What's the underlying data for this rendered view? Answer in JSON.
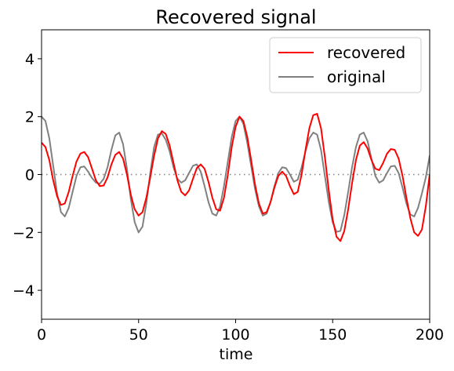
{
  "chart_data": {
    "type": "line",
    "title": "Recovered signal",
    "xlabel": "time",
    "ylabel": "",
    "xlim": [
      0,
      200
    ],
    "ylim": [
      -5,
      5
    ],
    "xticks": [
      0,
      50,
      100,
      150,
      200
    ],
    "yticks": [
      -4,
      -2,
      0,
      2,
      4
    ],
    "xtick_labels": [
      "0",
      "50",
      "100",
      "150",
      "200"
    ],
    "ytick_labels": [
      "−4",
      "−2",
      "0",
      "2",
      "4"
    ],
    "grid": false,
    "legend": "top-right",
    "reference_line": {
      "y": 0,
      "style": "dotted",
      "color": "#808080"
    },
    "series": [
      {
        "name": "recovered",
        "color": "#ff0000",
        "points": [
          [
            0,
            1.1
          ],
          [
            2,
            0.95
          ],
          [
            4,
            0.5
          ],
          [
            6,
            -0.2
          ],
          [
            8,
            -0.75
          ],
          [
            10,
            -1.05
          ],
          [
            12,
            -1.0
          ],
          [
            14,
            -0.6
          ],
          [
            16,
            -0.05
          ],
          [
            18,
            0.45
          ],
          [
            20,
            0.72
          ],
          [
            22,
            0.78
          ],
          [
            24,
            0.6
          ],
          [
            26,
            0.2
          ],
          [
            28,
            -0.2
          ],
          [
            30,
            -0.4
          ],
          [
            32,
            -0.38
          ],
          [
            34,
            -0.1
          ],
          [
            36,
            0.35
          ],
          [
            38,
            0.68
          ],
          [
            40,
            0.78
          ],
          [
            42,
            0.55
          ],
          [
            44,
            0.0
          ],
          [
            46,
            -0.7
          ],
          [
            48,
            -1.2
          ],
          [
            50,
            -1.42
          ],
          [
            52,
            -1.3
          ],
          [
            54,
            -0.8
          ],
          [
            56,
            -0.1
          ],
          [
            58,
            0.65
          ],
          [
            60,
            1.25
          ],
          [
            62,
            1.5
          ],
          [
            64,
            1.4
          ],
          [
            66,
            1.0
          ],
          [
            68,
            0.4
          ],
          [
            70,
            -0.2
          ],
          [
            72,
            -0.6
          ],
          [
            74,
            -0.72
          ],
          [
            76,
            -0.55
          ],
          [
            78,
            -0.15
          ],
          [
            80,
            0.22
          ],
          [
            82,
            0.35
          ],
          [
            84,
            0.2
          ],
          [
            86,
            -0.25
          ],
          [
            88,
            -0.8
          ],
          [
            90,
            -1.2
          ],
          [
            92,
            -1.25
          ],
          [
            94,
            -0.8
          ],
          [
            96,
            0.0
          ],
          [
            98,
            0.95
          ],
          [
            100,
            1.65
          ],
          [
            102,
            2.0
          ],
          [
            104,
            1.85
          ],
          [
            106,
            1.3
          ],
          [
            108,
            0.5
          ],
          [
            110,
            -0.35
          ],
          [
            112,
            -1.0
          ],
          [
            114,
            -1.35
          ],
          [
            116,
            -1.3
          ],
          [
            118,
            -0.95
          ],
          [
            120,
            -0.45
          ],
          [
            122,
            -0.05
          ],
          [
            124,
            0.1
          ],
          [
            126,
            -0.05
          ],
          [
            128,
            -0.4
          ],
          [
            130,
            -0.68
          ],
          [
            132,
            -0.6
          ],
          [
            134,
            0.0
          ],
          [
            136,
            0.85
          ],
          [
            138,
            1.6
          ],
          [
            140,
            2.05
          ],
          [
            142,
            2.1
          ],
          [
            144,
            1.6
          ],
          [
            146,
            0.6
          ],
          [
            148,
            -0.55
          ],
          [
            150,
            -1.55
          ],
          [
            152,
            -2.15
          ],
          [
            154,
            -2.3
          ],
          [
            156,
            -1.95
          ],
          [
            158,
            -1.2
          ],
          [
            160,
            -0.3
          ],
          [
            162,
            0.5
          ],
          [
            164,
            1.0
          ],
          [
            166,
            1.12
          ],
          [
            168,
            0.9
          ],
          [
            170,
            0.5
          ],
          [
            172,
            0.2
          ],
          [
            174,
            0.15
          ],
          [
            176,
            0.4
          ],
          [
            178,
            0.72
          ],
          [
            180,
            0.88
          ],
          [
            182,
            0.85
          ],
          [
            184,
            0.55
          ],
          [
            186,
            -0.05
          ],
          [
            188,
            -0.8
          ],
          [
            190,
            -1.5
          ],
          [
            192,
            -2.0
          ],
          [
            194,
            -2.12
          ],
          [
            196,
            -1.9
          ],
          [
            198,
            -1.1
          ],
          [
            200,
            0.0
          ]
        ]
      },
      {
        "name": "original",
        "color": "#808080",
        "points": [
          [
            0,
            2.0
          ],
          [
            2,
            1.85
          ],
          [
            4,
            1.25
          ],
          [
            6,
            0.3
          ],
          [
            8,
            -0.65
          ],
          [
            10,
            -1.3
          ],
          [
            12,
            -1.45
          ],
          [
            14,
            -1.15
          ],
          [
            16,
            -0.6
          ],
          [
            18,
            -0.05
          ],
          [
            20,
            0.25
          ],
          [
            22,
            0.28
          ],
          [
            24,
            0.1
          ],
          [
            26,
            -0.12
          ],
          [
            28,
            -0.28
          ],
          [
            30,
            -0.32
          ],
          [
            32,
            -0.15
          ],
          [
            34,
            0.25
          ],
          [
            36,
            0.85
          ],
          [
            38,
            1.35
          ],
          [
            40,
            1.45
          ],
          [
            42,
            1.05
          ],
          [
            44,
            0.2
          ],
          [
            46,
            -0.85
          ],
          [
            48,
            -1.65
          ],
          [
            50,
            -2.0
          ],
          [
            52,
            -1.8
          ],
          [
            54,
            -1.0
          ],
          [
            56,
            0.05
          ],
          [
            58,
            0.95
          ],
          [
            60,
            1.38
          ],
          [
            62,
            1.42
          ],
          [
            64,
            1.2
          ],
          [
            66,
            0.8
          ],
          [
            68,
            0.25
          ],
          [
            70,
            -0.15
          ],
          [
            72,
            -0.28
          ],
          [
            74,
            -0.2
          ],
          [
            76,
            0.05
          ],
          [
            78,
            0.3
          ],
          [
            80,
            0.35
          ],
          [
            82,
            0.1
          ],
          [
            84,
            -0.4
          ],
          [
            86,
            -0.95
          ],
          [
            88,
            -1.35
          ],
          [
            90,
            -1.42
          ],
          [
            92,
            -1.1
          ],
          [
            94,
            -0.4
          ],
          [
            96,
            0.45
          ],
          [
            98,
            1.3
          ],
          [
            100,
            1.85
          ],
          [
            102,
            2.0
          ],
          [
            104,
            1.75
          ],
          [
            106,
            1.1
          ],
          [
            108,
            0.3
          ],
          [
            110,
            -0.5
          ],
          [
            112,
            -1.1
          ],
          [
            114,
            -1.42
          ],
          [
            116,
            -1.35
          ],
          [
            118,
            -0.95
          ],
          [
            120,
            -0.4
          ],
          [
            122,
            0.05
          ],
          [
            124,
            0.25
          ],
          [
            126,
            0.22
          ],
          [
            128,
            0.0
          ],
          [
            130,
            -0.25
          ],
          [
            132,
            -0.18
          ],
          [
            134,
            0.25
          ],
          [
            136,
            0.8
          ],
          [
            138,
            1.25
          ],
          [
            140,
            1.45
          ],
          [
            142,
            1.38
          ],
          [
            144,
            0.85
          ],
          [
            146,
            -0.05
          ],
          [
            148,
            -0.95
          ],
          [
            150,
            -1.65
          ],
          [
            152,
            -1.98
          ],
          [
            154,
            -1.95
          ],
          [
            156,
            -1.4
          ],
          [
            158,
            -0.6
          ],
          [
            160,
            0.25
          ],
          [
            162,
            0.95
          ],
          [
            164,
            1.38
          ],
          [
            166,
            1.45
          ],
          [
            168,
            1.15
          ],
          [
            170,
            0.55
          ],
          [
            172,
            -0.05
          ],
          [
            174,
            -0.28
          ],
          [
            176,
            -0.2
          ],
          [
            178,
            0.05
          ],
          [
            180,
            0.28
          ],
          [
            182,
            0.3
          ],
          [
            184,
            0.05
          ],
          [
            186,
            -0.45
          ],
          [
            188,
            -1.0
          ],
          [
            190,
            -1.38
          ],
          [
            192,
            -1.45
          ],
          [
            194,
            -1.15
          ],
          [
            196,
            -0.65
          ],
          [
            198,
            -0.1
          ],
          [
            200,
            0.65
          ]
        ]
      }
    ]
  }
}
